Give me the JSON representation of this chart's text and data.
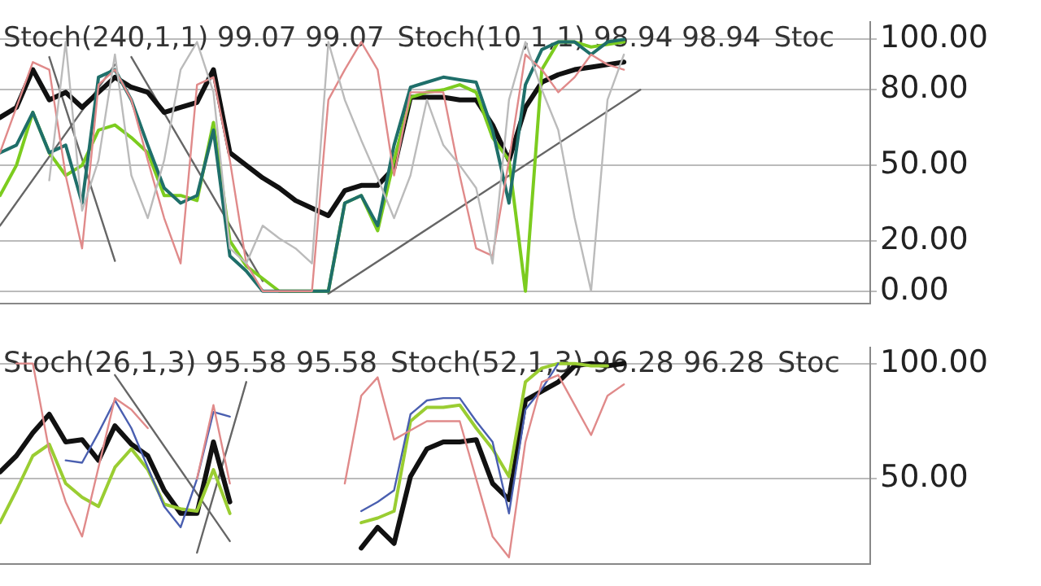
{
  "chart_data": [
    {
      "type": "line",
      "annotations": [
        "Stoch(240,1,1) 99.07 99.07",
        "Stoch(10,1,1) 98.94 98.94",
        "Stoc"
      ],
      "categories": [
        null,
        null,
        null,
        null,
        null,
        null,
        null,
        null,
        null,
        null,
        null,
        null,
        null,
        null,
        null,
        null,
        null,
        null,
        null,
        null,
        null,
        null,
        null,
        null,
        null,
        null,
        null,
        null,
        null,
        null,
        null,
        null,
        null,
        null,
        null,
        null,
        null,
        null,
        null,
        null,
        null,
        null,
        null,
        null,
        null,
        null,
        null,
        null,
        null,
        null,
        null,
        null,
        null,
        null
      ],
      "ylim": [
        -5,
        107
      ],
      "yticks": [
        {
          "value": 0,
          "label": "0.00"
        },
        {
          "value": 20,
          "label": "20.00"
        },
        {
          "value": 50,
          "label": "50.00"
        },
        {
          "value": 80,
          "label": "80.00"
        },
        {
          "value": 100,
          "label": "100.00"
        }
      ],
      "grid": "y",
      "tick_labels": "y",
      "marker": "none",
      "series": [
        {
          "color": "#bbbbbb",
          "values": [
            null,
            null,
            null,
            44,
            99,
            32,
            52,
            94,
            46,
            29,
            52,
            88,
            99,
            79,
            17,
            11,
            26,
            21,
            17,
            11,
            99,
            76,
            60,
            45,
            29,
            46,
            76,
            58,
            50,
            41,
            11,
            76,
            99,
            80,
            64,
            29,
            0,
            76,
            94,
            null,
            null,
            null,
            null,
            null,
            null,
            null,
            null,
            null,
            null,
            null,
            null,
            null,
            null,
            null
          ]
        },
        {
          "color": "#e08a8a",
          "values": [
            55,
            73,
            91,
            88,
            46,
            17,
            82,
            88,
            76,
            52,
            29,
            11,
            82,
            85,
            52,
            11,
            0,
            0,
            0,
            0,
            76,
            88,
            99,
            88,
            46,
            79,
            79,
            79,
            46,
            17,
            14,
            52,
            94,
            88,
            79,
            85,
            94,
            90,
            88,
            null,
            null,
            null,
            null,
            null,
            null,
            null,
            null,
            null,
            null,
            null,
            null,
            null,
            null,
            null
          ]
        },
        {
          "color": "#1f6f6a",
          "values": [
            55,
            58,
            71,
            55,
            58,
            35,
            85,
            88,
            76,
            58,
            41,
            35,
            38,
            64,
            14,
            8,
            0,
            0,
            0,
            0,
            0,
            35,
            38,
            26,
            58,
            81,
            83,
            85,
            84,
            83,
            64,
            35,
            82,
            96,
            99,
            99,
            94,
            99,
            100,
            null,
            null,
            null,
            null,
            null,
            null,
            null,
            null,
            null,
            null,
            null,
            null,
            null,
            null,
            null
          ]
        },
        {
          "color": "#7ccc1f",
          "values": [
            38,
            50,
            71,
            55,
            46,
            50,
            64,
            66,
            61,
            55,
            38,
            38,
            36,
            67,
            20,
            10,
            5,
            0,
            0,
            0,
            0,
            35,
            38,
            24,
            52,
            77,
            79,
            80,
            82,
            79,
            61,
            52,
            0,
            88,
            99,
            99,
            97,
            98,
            99,
            null,
            null,
            null,
            null,
            null,
            null,
            null,
            null,
            null,
            null,
            null,
            null,
            null,
            null,
            null
          ]
        },
        {
          "color": "#111111",
          "values": [
            69,
            73,
            88,
            76,
            79,
            73,
            79,
            85,
            81,
            79,
            71,
            73,
            75,
            88,
            55,
            50,
            45,
            41,
            36,
            33,
            30,
            40,
            42,
            42,
            49,
            77,
            77,
            77,
            76,
            76,
            66,
            52,
            73,
            83,
            86,
            88,
            89,
            90,
            91,
            null,
            null,
            null,
            null,
            null,
            null,
            null,
            null,
            null,
            null,
            null,
            null,
            null,
            null,
            null
          ]
        },
        {
          "color": "#666666",
          "values": [
            null,
            null,
            null,
            93,
            null,
            null,
            null,
            12,
            null,
            null,
            null,
            null,
            null,
            null,
            null,
            null,
            null,
            null,
            null,
            null,
            null,
            null,
            null,
            null,
            null,
            null,
            null,
            null,
            null,
            null,
            null,
            null,
            null,
            null,
            null,
            null,
            null,
            null,
            null,
            null,
            null,
            null,
            null,
            null,
            null,
            null,
            null,
            null,
            null,
            null,
            null,
            null,
            null,
            null
          ]
        },
        {
          "color": "#666666",
          "values": [
            26,
            null,
            null,
            null,
            null,
            null,
            null,
            90,
            null,
            null,
            null,
            null,
            null,
            null,
            null,
            null,
            null,
            null,
            null,
            null,
            null,
            null,
            null,
            null,
            null,
            null,
            null,
            null,
            null,
            null,
            null,
            null,
            null,
            null,
            null,
            null,
            null,
            null,
            null,
            null,
            null,
            null,
            null,
            null,
            null,
            null,
            null,
            null,
            null,
            null,
            null,
            null,
            null,
            null
          ]
        },
        {
          "color": "#666666",
          "values": [
            null,
            null,
            null,
            null,
            null,
            null,
            null,
            null,
            93,
            null,
            null,
            null,
            null,
            null,
            null,
            null,
            4,
            null,
            null,
            null,
            null,
            null,
            null,
            null,
            null,
            null,
            null,
            null,
            null,
            null,
            null,
            null,
            null,
            null,
            null,
            null,
            null,
            null,
            null,
            null,
            null,
            null,
            null,
            null,
            null,
            null,
            null,
            null,
            null,
            null,
            null,
            null,
            null,
            null
          ]
        },
        {
          "color": "#666666",
          "values": [
            null,
            null,
            null,
            null,
            null,
            null,
            null,
            null,
            null,
            null,
            null,
            null,
            null,
            null,
            null,
            null,
            null,
            null,
            null,
            null,
            -1,
            null,
            null,
            null,
            null,
            null,
            null,
            null,
            null,
            null,
            null,
            null,
            null,
            null,
            null,
            null,
            null,
            null,
            null,
            80,
            null,
            null,
            null,
            null,
            null,
            null,
            null,
            null,
            null,
            null,
            null,
            null,
            null,
            null
          ]
        }
      ]
    },
    {
      "type": "line",
      "annotations": [
        "Stoch(26,1,3) 95.58 95.58",
        "Stoch(52,1,3) 96.28 96.28",
        "Stoc"
      ],
      "categories": [
        null,
        null,
        null,
        null,
        null,
        null,
        null,
        null,
        null,
        null,
        null,
        null,
        null,
        null,
        null,
        null,
        null,
        null,
        null,
        null,
        null,
        null,
        null,
        null,
        null,
        null,
        null,
        null,
        null,
        null,
        null,
        null,
        null,
        null,
        null,
        null,
        null,
        null,
        null,
        null,
        null,
        null,
        null,
        null,
        null,
        null,
        null,
        null,
        null,
        null,
        null,
        null,
        null,
        null
      ],
      "ylim": [
        13,
        107
      ],
      "yticks": [
        {
          "value": 50,
          "label": "50.00"
        },
        {
          "value": 100,
          "label": "100.00"
        }
      ],
      "grid": "y",
      "tick_labels": "y",
      "marker": "none",
      "series": [
        {
          "color": "#e08a8a",
          "values": [
            null,
            100,
            100,
            62,
            40,
            25,
            55,
            85,
            80,
            72,
            null,
            null,
            50,
            82,
            48,
            null,
            null,
            null,
            null,
            null,
            null,
            48,
            86,
            94,
            67,
            71,
            75,
            75,
            75,
            50,
            25,
            16,
            66,
            92,
            95,
            82,
            69,
            86,
            91,
            null,
            null,
            null,
            null,
            null,
            null,
            null,
            null,
            null,
            null,
            null,
            null,
            null,
            null,
            null
          ]
        },
        {
          "color": "#4a5fb0",
          "values": [
            null,
            null,
            null,
            null,
            58,
            57,
            70,
            84,
            72,
            55,
            38,
            29,
            50,
            79,
            77,
            null,
            null,
            null,
            null,
            null,
            null,
            null,
            36,
            40,
            45,
            78,
            84,
            85,
            85,
            75,
            66,
            35,
            80,
            89,
            100,
            null,
            null,
            null,
            null,
            null,
            null,
            null,
            null,
            null,
            null,
            null,
            null,
            null,
            null,
            null,
            null,
            null,
            null,
            null
          ]
        },
        {
          "color": "#9acd32",
          "values": [
            31,
            45,
            60,
            65,
            48,
            42,
            38,
            55,
            63,
            54,
            39,
            37,
            36,
            54,
            35,
            null,
            null,
            null,
            null,
            null,
            null,
            null,
            31,
            33,
            36,
            75,
            81,
            81,
            82,
            72,
            63,
            51,
            92,
            98,
            100,
            100,
            99,
            99,
            null,
            null,
            null,
            null,
            null,
            null,
            null,
            null,
            null,
            null,
            null,
            null,
            null,
            null,
            null,
            null
          ]
        },
        {
          "color": "#111111",
          "values": [
            53,
            60,
            70,
            78,
            66,
            67,
            58,
            73,
            65,
            60,
            45,
            35,
            35,
            66,
            40,
            null,
            null,
            null,
            null,
            null,
            null,
            null,
            20,
            29,
            22,
            51,
            63,
            66,
            66,
            67,
            48,
            41,
            84,
            88,
            92,
            99,
            100,
            99,
            100,
            null,
            null,
            null,
            null,
            null,
            null,
            null,
            null,
            null,
            null,
            null,
            null,
            null,
            null,
            null
          ]
        },
        {
          "color": "#666666",
          "values": [
            null,
            null,
            null,
            null,
            null,
            null,
            null,
            95,
            null,
            null,
            null,
            null,
            null,
            null,
            23,
            null,
            null,
            null,
            null,
            null,
            null,
            null,
            null,
            null,
            null,
            null,
            null,
            null,
            null,
            null,
            null,
            null,
            null,
            null,
            null,
            null,
            null,
            null,
            null,
            null,
            null,
            null,
            null,
            null,
            null,
            null,
            null,
            null,
            null,
            null,
            null,
            null,
            null,
            null
          ]
        },
        {
          "color": "#666666",
          "values": [
            null,
            null,
            null,
            null,
            null,
            null,
            null,
            null,
            null,
            null,
            null,
            null,
            18,
            null,
            null,
            92,
            null,
            null,
            null,
            null,
            null,
            null,
            null,
            null,
            null,
            null,
            null,
            null,
            null,
            null,
            null,
            null,
            null,
            null,
            null,
            null,
            null,
            null,
            null,
            null,
            null,
            null,
            null,
            null,
            null,
            null,
            null,
            null,
            null,
            null,
            null,
            null,
            null,
            null
          ]
        }
      ]
    }
  ]
}
